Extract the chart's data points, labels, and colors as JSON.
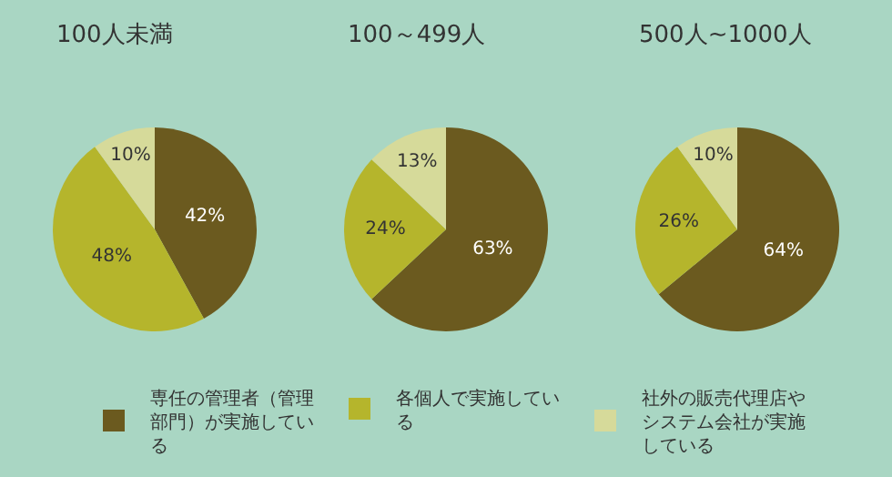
{
  "chart_data": [
    {
      "type": "pie",
      "title": "100人未満",
      "categories": [
        "専任の管理者（管理部門）が実施している",
        "各個人で実施している",
        "社外の販売代理店やシステム会社が実施している"
      ],
      "values": [
        42,
        48,
        10
      ],
      "value_labels": [
        "42%",
        "48%",
        "10%"
      ],
      "colors": [
        "#6b5a1f",
        "#b5b52c",
        "#d6da9a"
      ],
      "legend": "bottom"
    },
    {
      "type": "pie",
      "title": "100～499人",
      "values": [
        63,
        24,
        13
      ],
      "value_labels": [
        "63%",
        "24%",
        "13%"
      ],
      "colors": [
        "#6b5a1f",
        "#b5b52c",
        "#d6da9a"
      ]
    },
    {
      "type": "pie",
      "title": "500人~1000人",
      "values": [
        64,
        26,
        10
      ],
      "value_labels": [
        "64%",
        "26%",
        "10%"
      ],
      "colors": [
        "#6b5a1f",
        "#b5b52c",
        "#d6da9a"
      ]
    }
  ]
}
